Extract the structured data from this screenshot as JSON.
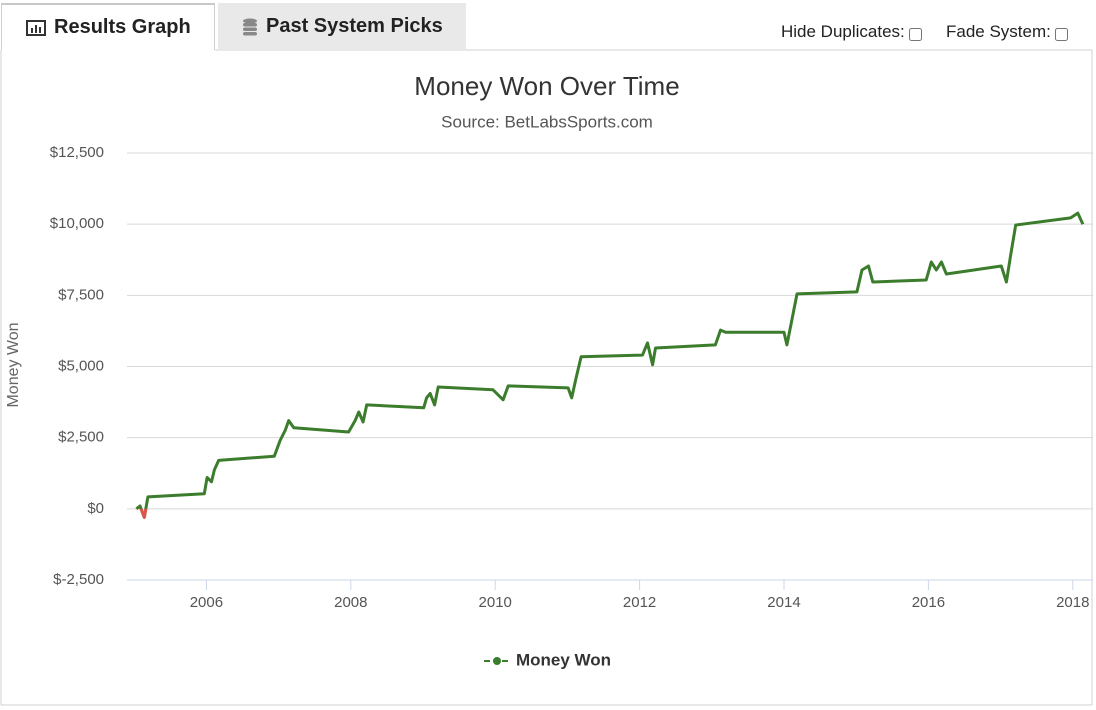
{
  "tabs": [
    "Results Graph",
    "Past System Picks"
  ],
  "controls": [
    "Hide Duplicates:",
    "Fade System:"
  ],
  "chart_data": {
    "type": "line",
    "title": "Money Won Over Time",
    "subtitle": "Source: BetLabsSports.com",
    "y_label": "Money Won",
    "x": [
      2005.03,
      2005.08,
      2005.14,
      2005.19,
      2005.97,
      2006.01,
      2006.07,
      2006.11,
      2006.17,
      2006.94,
      2007.02,
      2007.09,
      2007.14,
      2007.21,
      2007.97,
      2008.06,
      2008.11,
      2008.17,
      2008.22,
      2009.01,
      2009.05,
      2009.1,
      2009.16,
      2009.21,
      2009.97,
      2010.11,
      2010.18,
      2011.01,
      2011.06,
      2011.12,
      2011.19,
      2012.04,
      2012.11,
      2012.18,
      2012.22,
      2013.05,
      2013.12,
      2013.19,
      2014.0,
      2014.04,
      2014.11,
      2014.18,
      2015.01,
      2015.08,
      2015.17,
      2015.23,
      2015.97,
      2016.04,
      2016.11,
      2016.18,
      2016.25,
      2017.01,
      2017.08,
      2017.14,
      2017.21,
      2017.97,
      2018.07,
      2018.14
    ],
    "series": [
      {
        "name": "Money Won",
        "color": "#3b7d2c",
        "negative_color": "#e0534a",
        "values": [
          0,
          100,
          -300,
          420,
          530,
          1100,
          950,
          1370,
          1700,
          1850,
          2400,
          2750,
          3100,
          2850,
          2700,
          3100,
          3400,
          3050,
          3650,
          3550,
          3900,
          4050,
          3650,
          4280,
          4180,
          3830,
          4320,
          4250,
          3900,
          4600,
          5340,
          5400,
          5830,
          5060,
          5650,
          5760,
          6280,
          6200,
          6200,
          5760,
          6640,
          7550,
          7620,
          8390,
          8530,
          7970,
          8040,
          8670,
          8390,
          8670,
          8250,
          8530,
          7970,
          8920,
          9970,
          10220,
          10390,
          10000
        ]
      }
    ],
    "xlim": [
      2004.9,
      2018.28
    ],
    "xticks": [
      2006,
      2008,
      2010,
      2012,
      2014,
      2016,
      2018
    ],
    "ylim": [
      -2500,
      12500
    ],
    "yticks": [
      {
        "value": -2500,
        "label": "$-2,500"
      },
      {
        "value": 0,
        "label": "$0"
      },
      {
        "value": 2500,
        "label": "$2,500"
      },
      {
        "value": 5000,
        "label": "$5,000"
      },
      {
        "value": 7500,
        "label": "$7,500"
      },
      {
        "value": 10000,
        "label": "$10,000"
      },
      {
        "value": 12500,
        "label": "$12,500"
      }
    ],
    "grid": true
  }
}
